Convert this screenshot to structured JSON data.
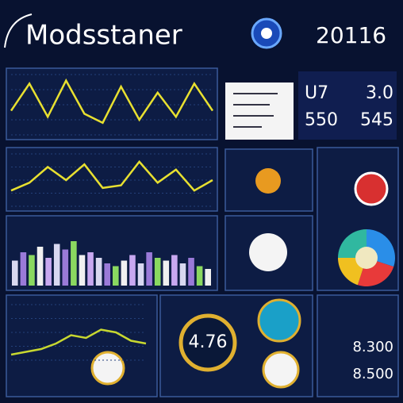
{
  "header": {
    "title": "Modsstaner",
    "year": "20116"
  },
  "stats": {
    "rows": [
      [
        "U7",
        "3.0"
      ],
      [
        "550",
        "545"
      ]
    ]
  },
  "line_panels": [
    {
      "color": "#e8e030",
      "ylim": [
        0,
        100
      ],
      "values": [
        40,
        85,
        30,
        90,
        35,
        20,
        80,
        25,
        70,
        30,
        85,
        40
      ]
    },
    {
      "color": "#e8e030",
      "ylim": [
        0,
        100
      ],
      "values": [
        30,
        45,
        75,
        50,
        80,
        35,
        40,
        85,
        45,
        70,
        30,
        50
      ]
    },
    {
      "color": "#c8d830",
      "ylim": [
        0,
        100
      ],
      "values": [
        10,
        15,
        20,
        30,
        45,
        40,
        55,
        50,
        35,
        30
      ]
    }
  ],
  "bars": {
    "ylim": [
      0,
      100
    ],
    "colors": [
      "#d8d8f0",
      "#9a7ad8",
      "#8ad860",
      "#f0f0f0",
      "#c8a8f0"
    ],
    "values": [
      45,
      60,
      55,
      70,
      50,
      75,
      65,
      80,
      55,
      60,
      50,
      40,
      35,
      45,
      55,
      40,
      60,
      50,
      45,
      55,
      40,
      50,
      35,
      30
    ]
  },
  "pie": {
    "values": [
      30,
      25,
      20,
      25
    ],
    "colors": [
      "#2a8ee8",
      "#e83a3a",
      "#f0c020",
      "#30b8a0"
    ]
  },
  "gauge": {
    "label": "4.76"
  },
  "readouts": [
    "8.300",
    "8.500"
  ]
}
